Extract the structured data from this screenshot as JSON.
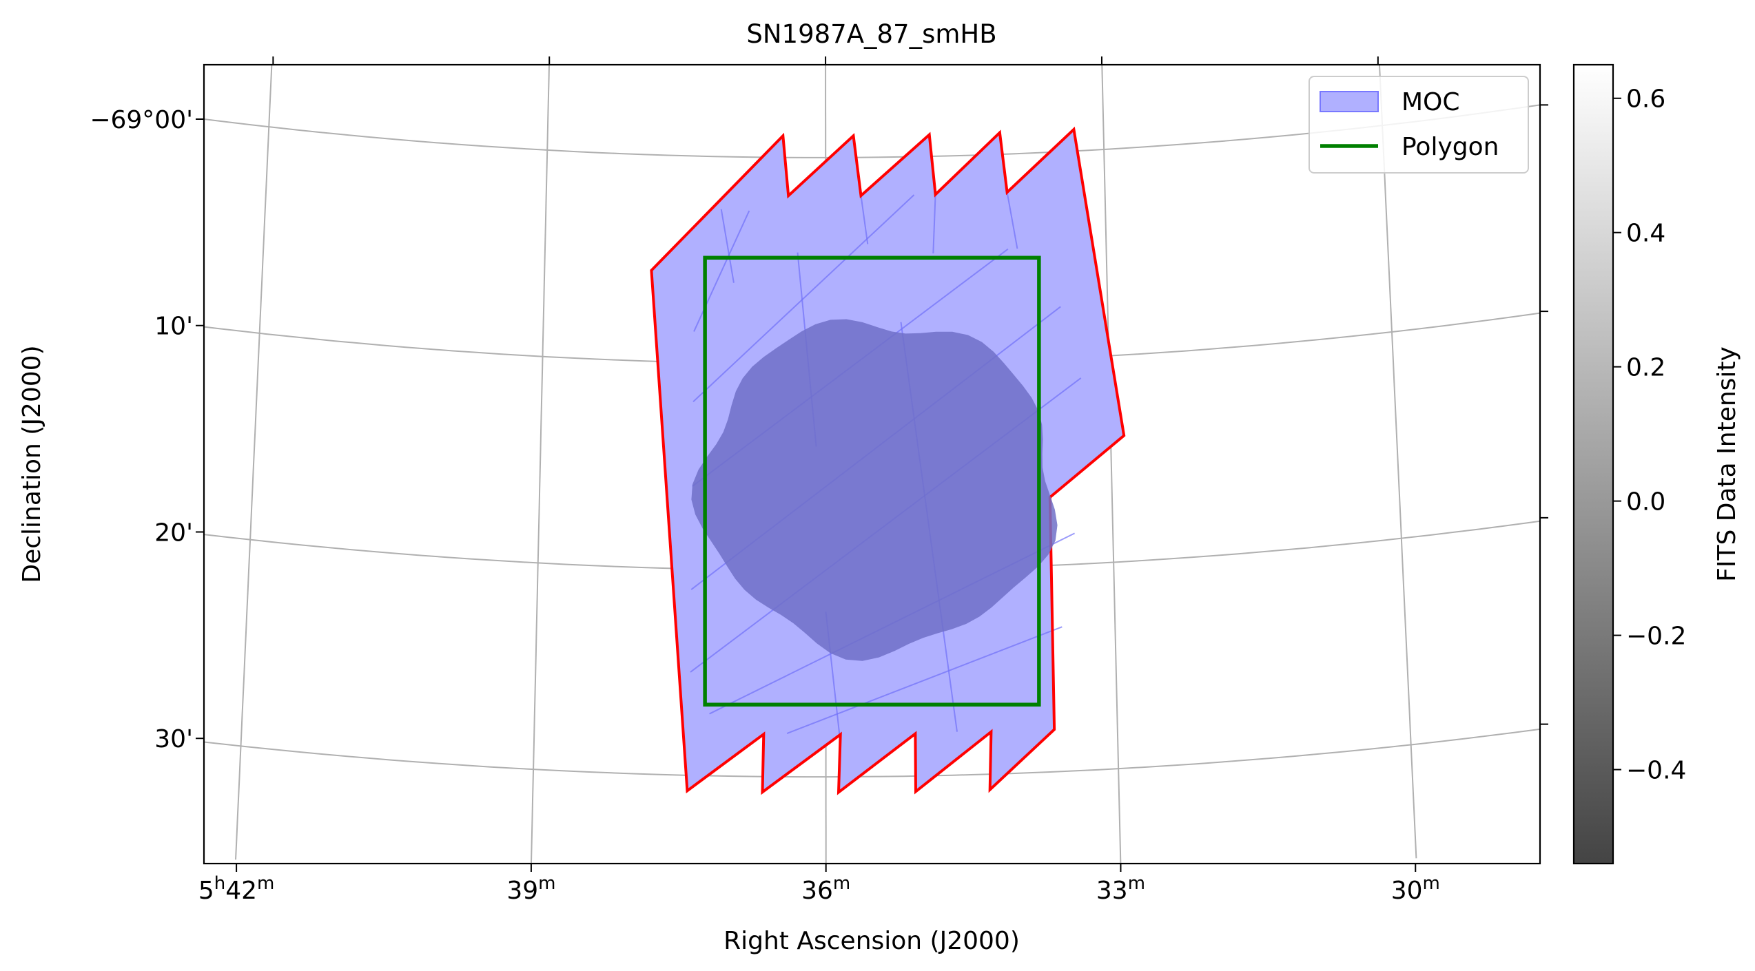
{
  "chart_data": {
    "type": "sky-map",
    "title": "SN1987A_87_smHB",
    "xlabel": "Right Ascension (J2000)",
    "ylabel": "Declination (J2000)",
    "ra_ticks": [
      {
        "h": "5",
        "m": "42",
        "ra_min": 42
      },
      {
        "m": "39",
        "ra_min": 39
      },
      {
        "m": "36",
        "ra_min": 36
      },
      {
        "m": "33",
        "ra_min": 33
      },
      {
        "m": "30",
        "ra_min": 30
      }
    ],
    "dec_ticks": [
      {
        "label": "−69°00'",
        "dec_arcmin": 0
      },
      {
        "label": "10'",
        "dec_arcmin": 10
      },
      {
        "label": "20'",
        "dec_arcmin": 20
      },
      {
        "label": "30'",
        "dec_arcmin": 30
      }
    ],
    "x_range_ra_min": [
      42.7,
      28.3
    ],
    "y_range_dec_arcmin": [
      -4.5,
      34.2
    ],
    "grid": true,
    "legend_position": "top-right",
    "legend": [
      {
        "label": "MOC",
        "kind": "patch",
        "color": "#b0b0ff",
        "edge": "#7878ff"
      },
      {
        "label": "Polygon",
        "kind": "line",
        "color": "#008000"
      }
    ],
    "moc_outline_color": "#ff0000",
    "moc_fill_color": "#b0b0ff",
    "moc_cell_line_color": "#7070f8",
    "polygon_color": "#008000",
    "polygon_ra_min": [
      37.3,
      33.7
    ],
    "polygon_dec_arcmin": [
      4.85,
      26.5
    ],
    "image_color": "#7070c8",
    "colorbar": {
      "label": "FITS Data Intensity",
      "min": -0.54,
      "max": 0.65,
      "ticks": [
        {
          "value": 0.6,
          "label": "0.6"
        },
        {
          "value": 0.4,
          "label": "0.4"
        },
        {
          "value": 0.2,
          "label": "0.2"
        },
        {
          "value": 0.0,
          "label": "0.0"
        },
        {
          "value": -0.2,
          "label": "−0.2"
        },
        {
          "value": -0.4,
          "label": "−0.4"
        }
      ]
    }
  }
}
